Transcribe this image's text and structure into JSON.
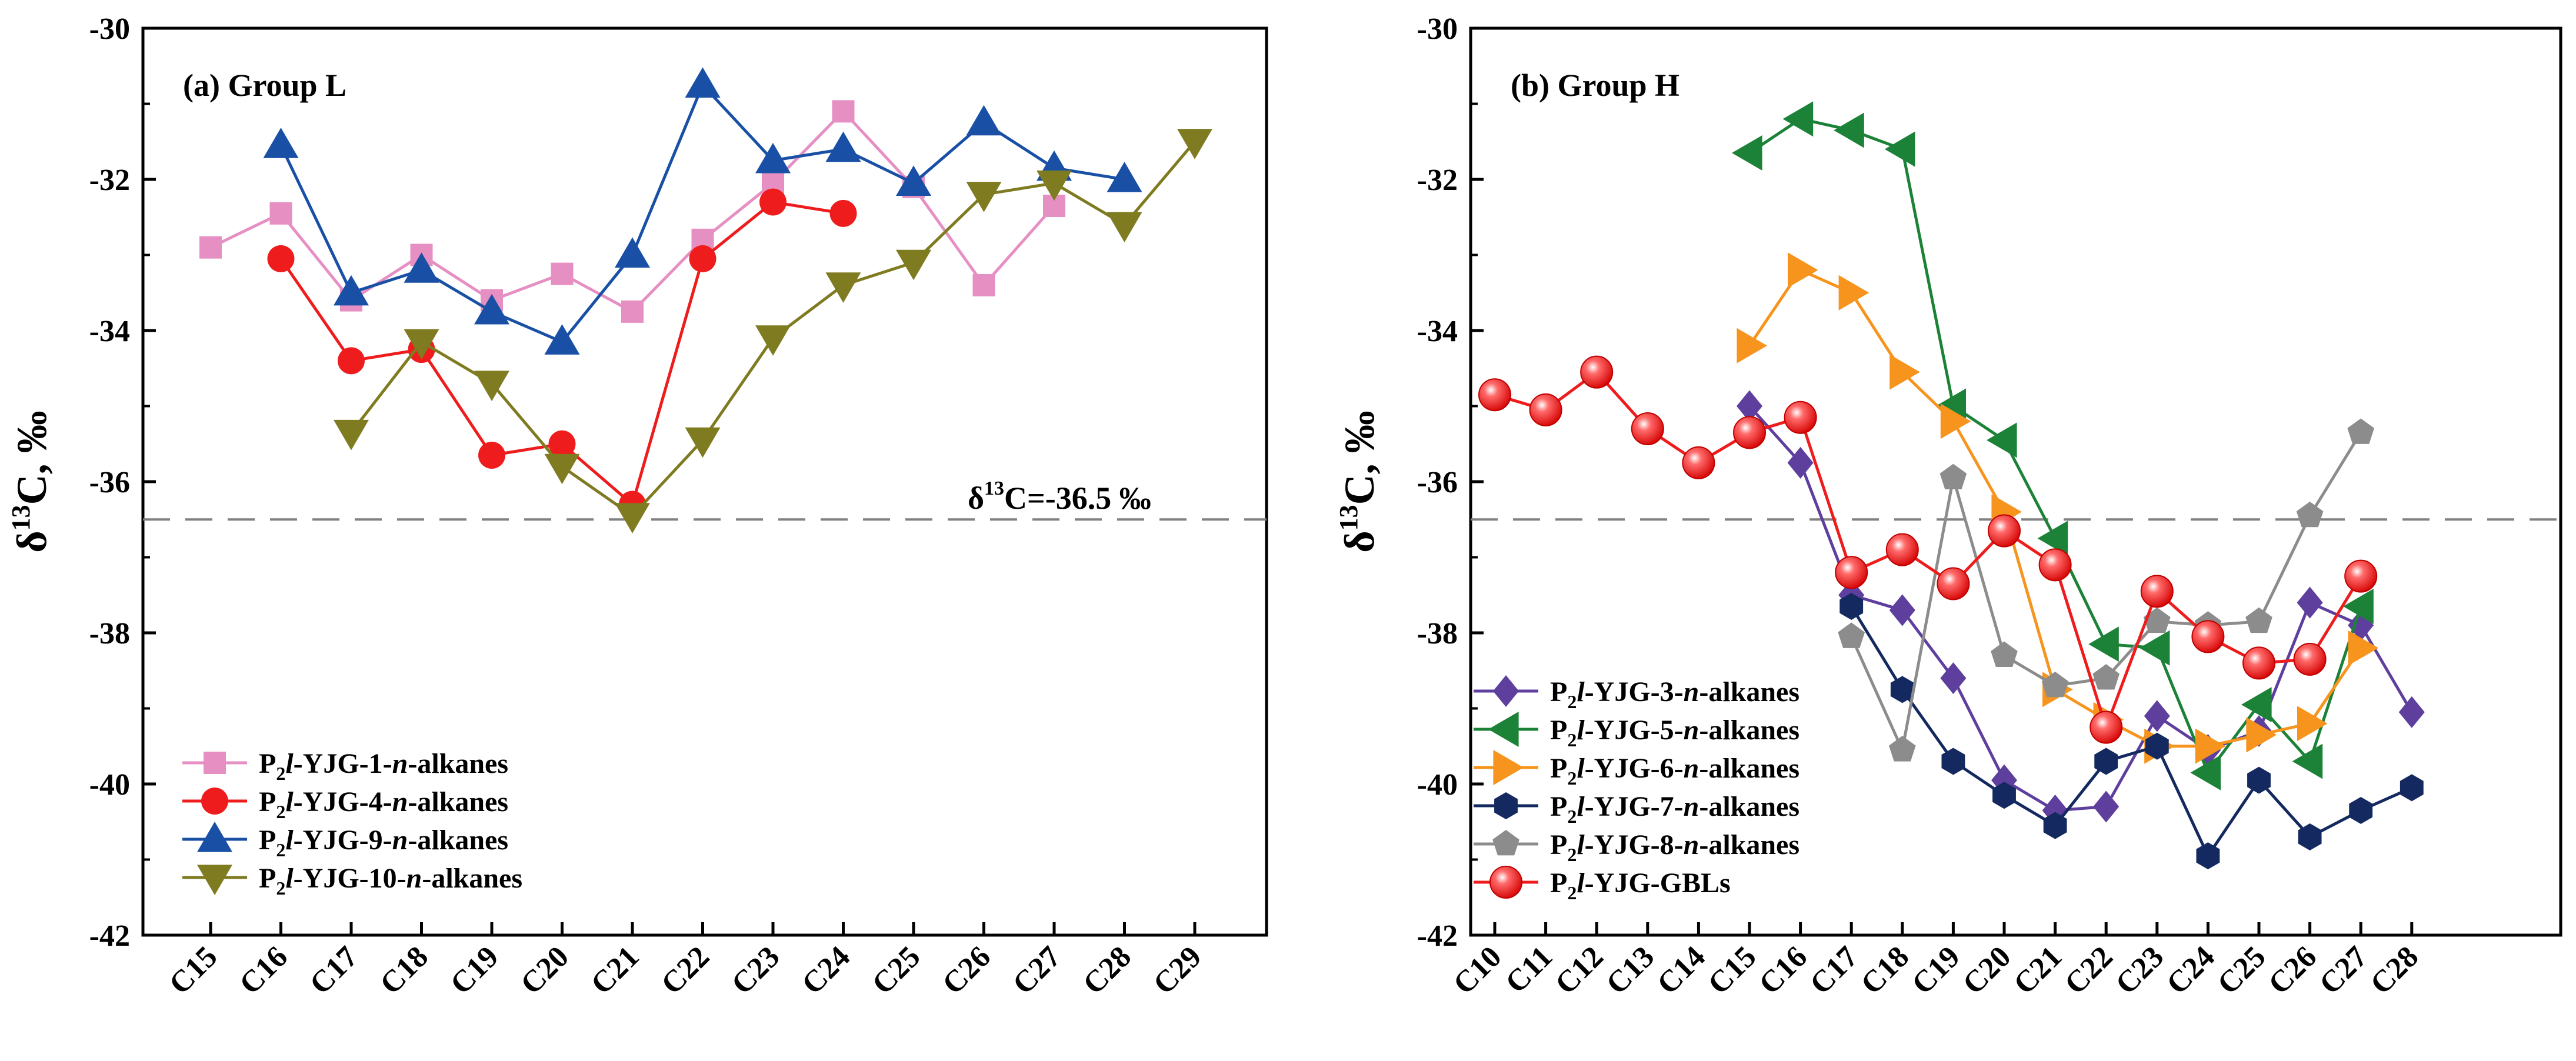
{
  "chart_data": [
    {
      "type": "line",
      "title": "(a) Group L",
      "ylabel": "δ13C, ‰",
      "xlabel": "",
      "ylim": [
        -42,
        -30
      ],
      "yticks": [
        -42,
        -40,
        -38,
        -36,
        -34,
        -32,
        -30
      ],
      "categories": [
        "C15",
        "C16",
        "C17",
        "C18",
        "C19",
        "C20",
        "C21",
        "C22",
        "C23",
        "C24",
        "C25",
        "C26",
        "C27",
        "C28",
        "C29"
      ],
      "reference_line": {
        "value": -36.5,
        "label": "δ13C=-36.5 ‰"
      },
      "legend_position": "bottom-left",
      "grid": false,
      "series": [
        {
          "name": "P2l-YJG-1-n-alkanes",
          "color": "#E68FC3",
          "marker": "square",
          "values": [
            -32.9,
            -32.45,
            -33.6,
            -33.0,
            -33.6,
            -33.25,
            -33.75,
            -32.8,
            -32.05,
            -31.1,
            -32.1,
            -33.4,
            -32.35,
            null,
            null
          ]
        },
        {
          "name": "P2l-YJG-4-n-alkanes",
          "color": "#EE1C1C",
          "marker": "circle",
          "values": [
            null,
            -33.05,
            -34.4,
            -34.25,
            -35.65,
            -35.5,
            -36.3,
            -33.05,
            -32.3,
            -32.45,
            null,
            null,
            null,
            null,
            null
          ]
        },
        {
          "name": "P2l-YJG-9-n-alkanes",
          "color": "#1950A5",
          "marker": "triangle-up",
          "values": [
            null,
            -31.55,
            -33.5,
            -33.2,
            -33.75,
            -34.15,
            -33.0,
            -30.75,
            -31.75,
            -31.6,
            -32.05,
            -31.25,
            -31.85,
            -32.0,
            null
          ]
        },
        {
          "name": "P2l-YJG-10-n-alkanes",
          "color": "#7F7B21",
          "marker": "triangle-down",
          "values": [
            null,
            null,
            -35.35,
            -34.15,
            -34.7,
            -35.8,
            -36.45,
            -35.45,
            -34.1,
            -33.4,
            -33.1,
            -32.2,
            -32.05,
            -32.6,
            -31.5
          ]
        }
      ]
    },
    {
      "type": "line",
      "title": "(b) Group H",
      "ylabel": "δ13C, ‰",
      "xlabel": "",
      "ylim": [
        -42,
        -30
      ],
      "yticks": [
        -42,
        -40,
        -38,
        -36,
        -34,
        -32,
        -30
      ],
      "categories": [
        "C10",
        "C11",
        "C12",
        "C13",
        "C14",
        "C15",
        "C16",
        "C17",
        "C18",
        "C19",
        "C20",
        "C21",
        "C22",
        "C23",
        "C24",
        "C25",
        "C26",
        "C27",
        "C28"
      ],
      "reference_line": {
        "value": -36.5,
        "label": ""
      },
      "legend_position": "bottom-left",
      "grid": false,
      "series": [
        {
          "name": "P2l-YJG-3-n-alkanes",
          "color": "#5E3F9E",
          "marker": "diamond",
          "values": [
            null,
            null,
            null,
            null,
            null,
            -35.0,
            -35.75,
            -37.5,
            -37.7,
            -38.6,
            -39.95,
            -40.35,
            -40.3,
            -39.1,
            -39.55,
            -39.3,
            -37.6,
            -37.9,
            -39.05
          ]
        },
        {
          "name": "P2l-YJG-5-n-alkanes",
          "color": "#1C8237",
          "marker": "triangle-left",
          "values": [
            null,
            null,
            null,
            null,
            null,
            -31.65,
            -31.2,
            -31.35,
            -31.6,
            -35.0,
            -35.45,
            -36.75,
            -38.15,
            -38.2,
            -39.85,
            -38.95,
            -39.7,
            -37.65,
            null
          ]
        },
        {
          "name": "P2l-YJG-6-n-alkanes",
          "color": "#F7941D",
          "marker": "triangle-right",
          "values": [
            null,
            null,
            null,
            null,
            null,
            -34.2,
            -33.2,
            -33.5,
            -34.55,
            -35.2,
            -36.4,
            -38.75,
            -39.15,
            -39.5,
            -39.5,
            -39.35,
            -39.2,
            -38.2,
            null
          ]
        },
        {
          "name": "P2l-YJG-7-n-alkanes",
          "color": "#14295F",
          "marker": "hexagon",
          "values": [
            null,
            null,
            null,
            null,
            null,
            null,
            null,
            -37.65,
            -38.75,
            -39.7,
            -40.15,
            -40.55,
            -39.7,
            -39.5,
            -40.95,
            -39.95,
            -40.7,
            -40.35,
            -40.05
          ]
        },
        {
          "name": "P2l-YJG-8-n-alkanes",
          "color": "#8C8C8C",
          "marker": "pentagon",
          "values": [
            null,
            null,
            null,
            null,
            null,
            null,
            null,
            -38.05,
            -39.55,
            -35.95,
            -38.3,
            -38.7,
            -38.6,
            -37.85,
            -37.9,
            -37.85,
            -36.45,
            -35.35,
            null
          ]
        },
        {
          "name": "P2l-YJG-GBLs",
          "color": "#EE1C1C",
          "marker": "ball",
          "values": [
            -34.85,
            -35.05,
            -34.55,
            -35.3,
            -35.75,
            -35.35,
            -35.15,
            -37.2,
            -36.9,
            -37.35,
            -36.65,
            -37.1,
            -39.25,
            -37.45,
            -38.05,
            -38.4,
            -38.35,
            -37.25,
            null
          ]
        }
      ]
    }
  ]
}
